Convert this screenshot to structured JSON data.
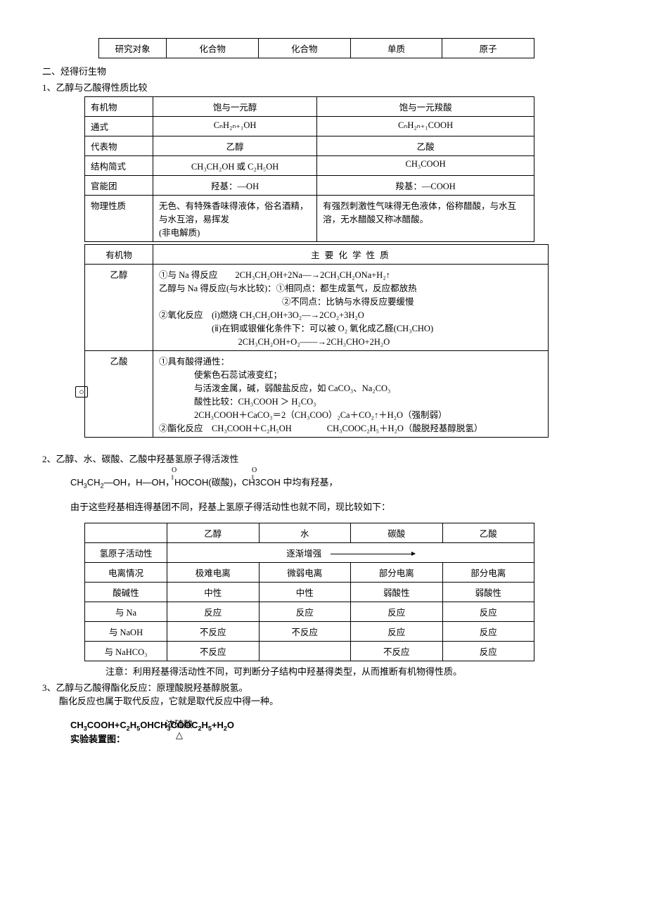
{
  "t0": {
    "r": [
      "研究对象",
      "化合物",
      "化合物",
      "单质",
      "原子"
    ]
  },
  "h1": "二、烃得衍生物",
  "h2": "1、乙醇与乙酸得性质比较",
  "t1": {
    "rows": [
      [
        "有机物",
        "饱与一元醇",
        "饱与一元羧酸"
      ],
      [
        "通式",
        "CₙH₂ₙ₊₁OH",
        "CₙH₂ₙ₊₁COOH"
      ],
      [
        "代表物",
        "乙醇",
        "乙酸"
      ],
      [
        "结构简式",
        "CH₃CH₂OH 或 C₂H₅OH",
        "CH₃COOH"
      ],
      [
        "官能团",
        "羟基：—OH",
        "羧基：—COOH"
      ],
      [
        "物理性质",
        "无色、有特殊香味得液体，俗名酒精，与水互溶，易挥发\n(非电解质)",
        "有强烈刺激性气味得无色液体，俗称醋酸，与水互溶，无水醋酸又称冰醋酸。"
      ]
    ]
  },
  "t2": {
    "head": [
      "有机物",
      "主 要 化 学 性 质"
    ],
    "r1label": "乙醇",
    "r1": [
      "①与 Na 得反应　　2CH₃CH₂OH+2Na—→2CH₃CH₂ONa+H₂↑",
      "乙醇与 Na 得反应(与水比较)：①相同点：都生成氢气，反应都放热",
      "　　　　　　　　　　　　　　②不同点：比钠与水得反应要缓慢",
      "②氧化反应　(ⅰ)燃烧 CH₃CH₂OH+3O₂—→2CO₂+3H₂O",
      "　　　　　　(ⅱ)在铜或银催化条件下：可以被 O₂ 氧化成乙醛(CH₃CHO)",
      "　　　　　　　　　2CH₃CH₂OH+O₂——→2CH₃CHO+2H₂O"
    ],
    "r2label": "乙酸",
    "r2": [
      "①具有酸得通性：",
      "　　　　使紫色石蕊试液变红；",
      "　　　　与活泼金属，碱，弱酸盐反应，如 CaCO₃、Na₂CO₃",
      "　　　　酸性比较：CH₃COOH ＞ H₂CO₃",
      "　　　　2CH₃COOH＋CaCO₃＝2（CH₃COO）₂Ca＋CO₂↑＋H₂O（强制弱）",
      "②酯化反应　CH₃COOH＋C₂H₅OH　　　　CH₃COOC₂H₅＋H₂O（酸脱羟基醇脱氢）"
    ]
  },
  "h3": "2、乙醇、水、碳酸、乙酸中羟基氢原子得活泼性",
  "line2": "CH₃CH₂—OH，H—OH，HOCOH(碳酸)，CH3COH 中均有羟基，",
  "line3": "由于这些羟基相连得基团不同，羟基上氢原子得活动性也就不同，现比较如下：",
  "t3": {
    "head": [
      "",
      "乙醇",
      "水",
      "碳酸",
      "乙酸"
    ],
    "rows": [
      [
        "氢原子活动性",
        "__ARROW__逐渐增强"
      ],
      [
        "电离情况",
        "极难电离",
        "微弱电离",
        "部分电离",
        "部分电离"
      ],
      [
        "酸碱性",
        "中性",
        "中性",
        "弱酸性",
        "弱酸性"
      ],
      [
        "与 Na",
        "反应",
        "反应",
        "反应",
        "反应"
      ],
      [
        "与 NaOH",
        "不反应",
        "不反应",
        "反应",
        "反应"
      ],
      [
        "与 NaHCO₃",
        "不反应",
        "",
        "不反应",
        "反应"
      ]
    ]
  },
  "note": "注意：利用羟基得活动性不同，可判断分子结构中羟基得类型，从而推断有机物得性质。",
  "h4": "3、乙醇与乙酸得酯化反应：原理酸脱羟基醇脱氢。",
  "h4b": "酯化反应也属于取代反应，它就是取代反应中得一种。",
  "eq": "CH₃COOH+C₂H₅OHCH₃COOC₂H₅+H₂O",
  "eqcond1": "浓硫酸",
  "eqcond2": "△",
  "h5": "实验装置图："
}
